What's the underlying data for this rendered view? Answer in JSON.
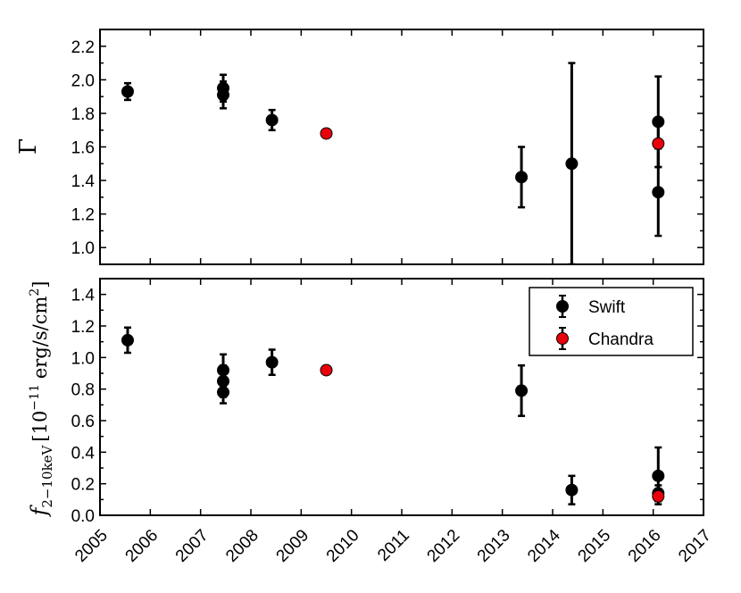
{
  "chart_data": [
    {
      "type": "scatter",
      "ylabel": "Γ",
      "xlim": [
        2005,
        2017
      ],
      "ylim": [
        0.9,
        2.3
      ],
      "yticks": [
        "1.0",
        "1.2",
        "1.4",
        "1.6",
        "1.8",
        "2.0",
        "2.2"
      ],
      "grid": false,
      "series": [
        {
          "name": "Swift",
          "color": "#000000",
          "points": [
            {
              "x": 2005.55,
              "y": 1.93,
              "err": 0.05
            },
            {
              "x": 2007.45,
              "y": 1.95,
              "err": 0.08
            },
            {
              "x": 2007.45,
              "y": 1.91,
              "err": 0.08
            },
            {
              "x": 2008.42,
              "y": 1.76,
              "err": 0.06
            },
            {
              "x": 2013.38,
              "y": 1.42,
              "err": 0.18
            },
            {
              "x": 2014.38,
              "y": 1.5,
              "err": 0.6
            },
            {
              "x": 2016.1,
              "y": 1.75,
              "err": 0.27
            },
            {
              "x": 2016.1,
              "y": 1.33,
              "err": 0.26
            }
          ]
        },
        {
          "name": "Chandra",
          "color": "#e8000b",
          "points": [
            {
              "x": 2009.5,
              "y": 1.68,
              "err": 0.0
            },
            {
              "x": 2016.1,
              "y": 1.62,
              "err": 0.14
            }
          ]
        }
      ]
    },
    {
      "type": "scatter",
      "ylabel_main": "f",
      "ylabel_sub": "2−10keV",
      "ylabel_bracket_open": "[10",
      "ylabel_exp": "−11",
      "ylabel_unit": "erg/s/cm",
      "ylabel_unit_exp": "2",
      "ylabel_bracket_close": "]",
      "xlim": [
        2005,
        2017
      ],
      "ylim": [
        0.0,
        1.5
      ],
      "xticks": [
        "2005",
        "2006",
        "2007",
        "2008",
        "2009",
        "2010",
        "2011",
        "2012",
        "2013",
        "2014",
        "2015",
        "2016",
        "2017"
      ],
      "yticks": [
        "0.0",
        "0.2",
        "0.4",
        "0.6",
        "0.8",
        "1.0",
        "1.2",
        "1.4"
      ],
      "grid": false,
      "legend_position": "top-right",
      "series": [
        {
          "name": "Swift",
          "color": "#000000",
          "points": [
            {
              "x": 2005.55,
              "y": 1.11,
              "err": 0.08
            },
            {
              "x": 2007.45,
              "y": 0.92,
              "err": 0.1
            },
            {
              "x": 2007.45,
              "y": 0.85,
              "err": 0.1
            },
            {
              "x": 2007.45,
              "y": 0.78,
              "err": 0.07
            },
            {
              "x": 2008.42,
              "y": 0.97,
              "err": 0.08
            },
            {
              "x": 2013.38,
              "y": 0.79,
              "err": 0.16
            },
            {
              "x": 2014.38,
              "y": 0.16,
              "err": 0.09
            },
            {
              "x": 2016.1,
              "y": 0.25,
              "err": 0.18
            },
            {
              "x": 2016.1,
              "y": 0.14,
              "err": 0.05
            }
          ]
        },
        {
          "name": "Chandra",
          "color": "#e8000b",
          "points": [
            {
              "x": 2009.5,
              "y": 0.92,
              "err": 0.0
            },
            {
              "x": 2016.1,
              "y": 0.12,
              "err": 0.03
            }
          ]
        }
      ]
    }
  ]
}
